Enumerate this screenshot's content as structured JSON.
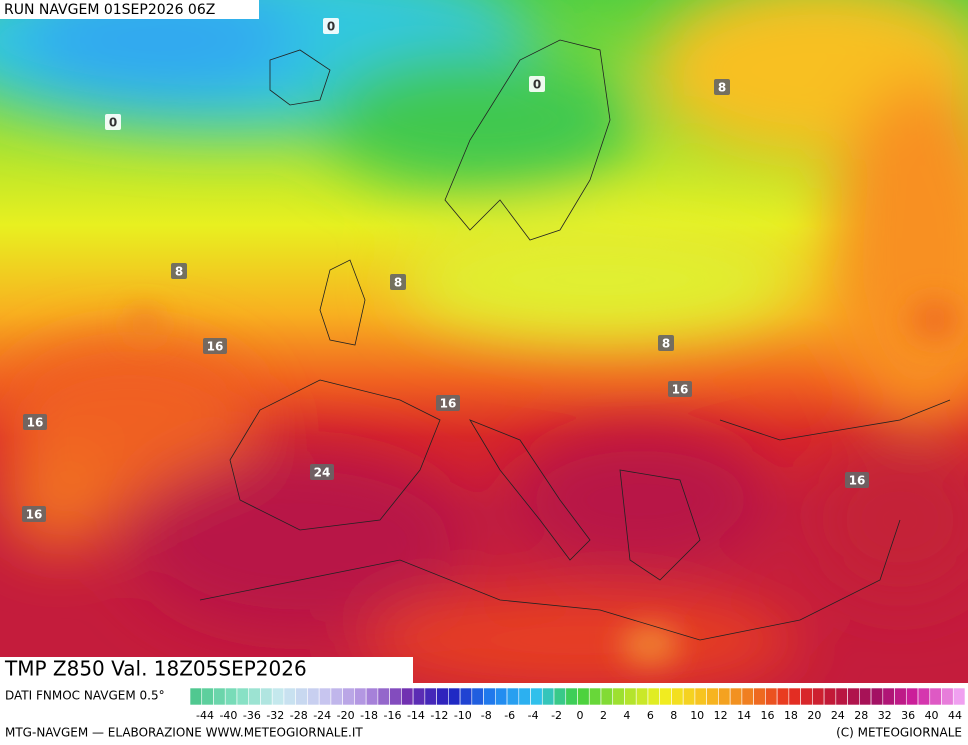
{
  "header": {
    "run": "RUN NAVGEM 01SEP2026 06Z"
  },
  "map": {
    "contour_labels": [
      0,
      0,
      0,
      8,
      8,
      8,
      8,
      16,
      16,
      16,
      16,
      16,
      16,
      24
    ]
  },
  "footer": {
    "title": "TMP Z850 Val. 18Z05SEP2026",
    "source": "DATI FNMOC NAVGEM 0.5°",
    "colorbar_labels": [
      -44,
      -40,
      -36,
      -32,
      -28,
      -24,
      -20,
      -18,
      -16,
      -14,
      -12,
      -10,
      -8,
      -6,
      -4,
      -2,
      0,
      2,
      4,
      6,
      8,
      10,
      12,
      14,
      16,
      18,
      20,
      24,
      28,
      32,
      36,
      40,
      44
    ],
    "credit": "MTG-NAVGEM — ELABORAZIONE WWW.METEOGIORNALE.IT",
    "copyright": "(C) METEOGIORNALE"
  }
}
